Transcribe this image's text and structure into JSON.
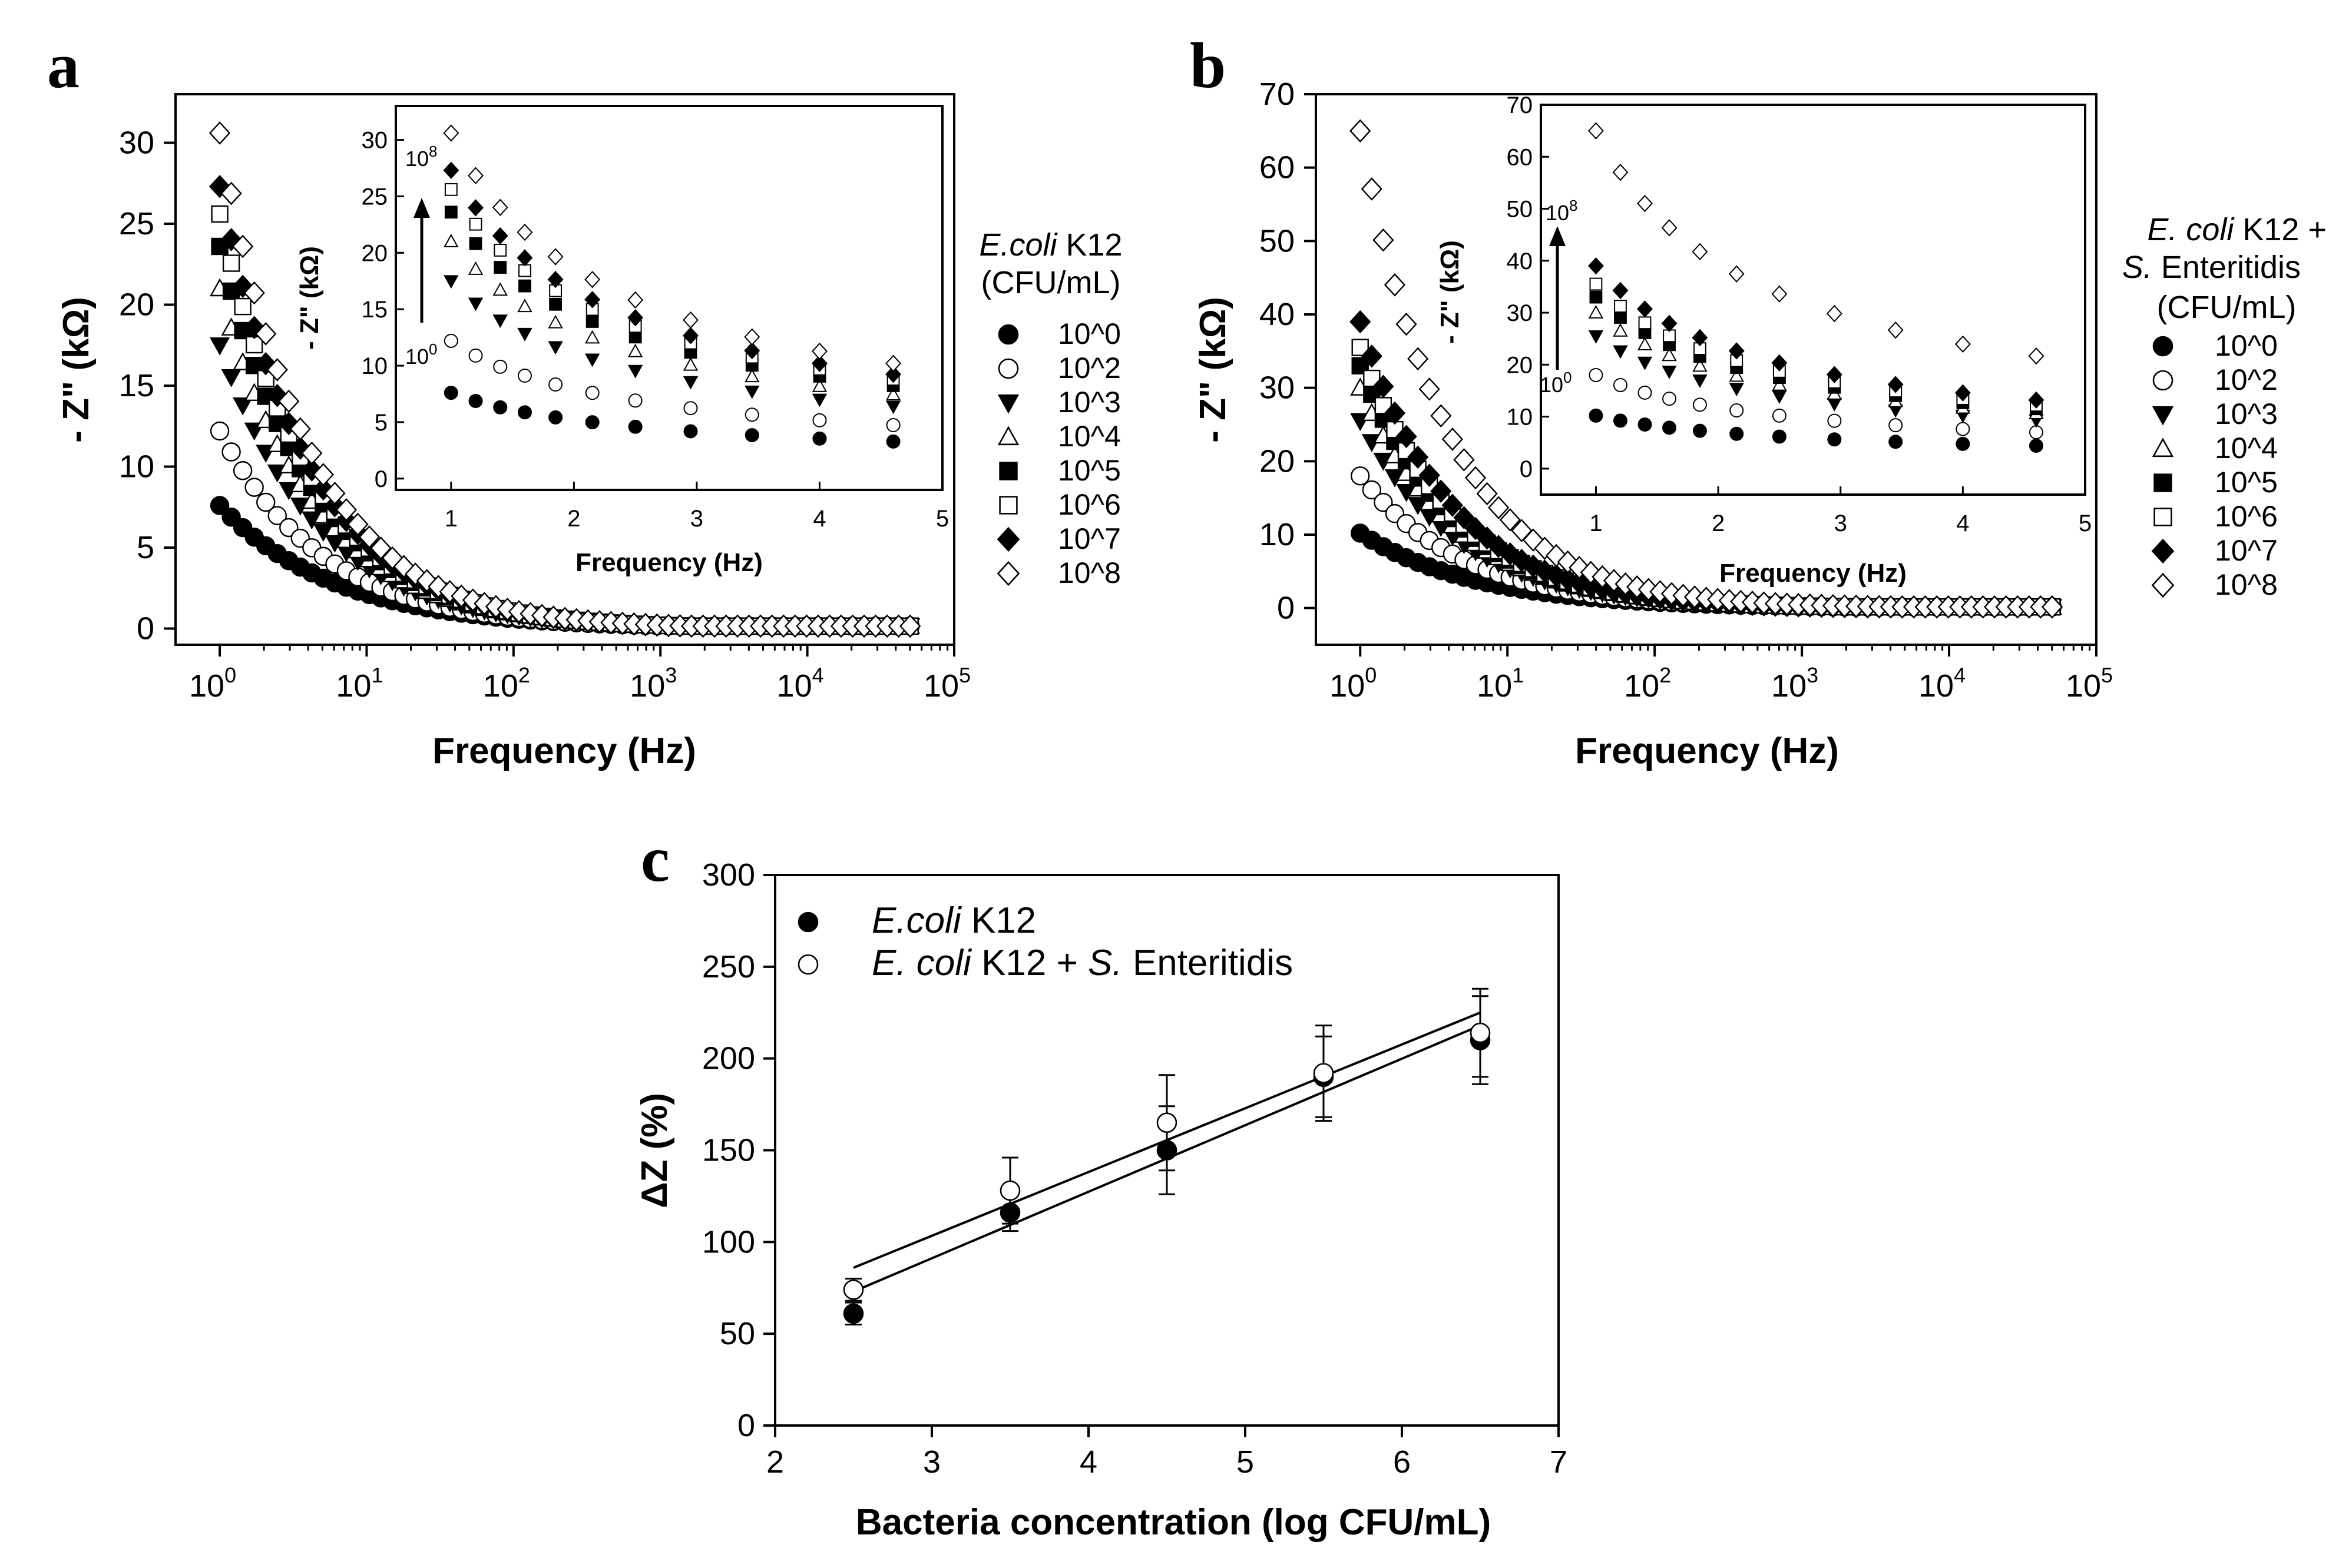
{
  "colors": {
    "ink": "#000000",
    "paper": "#ffffff"
  },
  "panels": {
    "a": {
      "letter": "a"
    },
    "b": {
      "letter": "b"
    },
    "c": {
      "letter": "c"
    }
  },
  "chart_data": [
    {
      "id": "a",
      "type": "scatter",
      "title": "",
      "xlabel": "Frequency (Hz)",
      "ylabel": "- Z\" (kΩ)",
      "xscale": "log",
      "xlim": [
        0.5,
        100000
      ],
      "ylim": [
        -1,
        33
      ],
      "x_tick_labels": [
        {
          "base": "10",
          "exp": "0"
        },
        {
          "base": "10",
          "exp": "1"
        },
        {
          "base": "10",
          "exp": "2"
        },
        {
          "base": "10",
          "exp": "3"
        },
        {
          "base": "10",
          "exp": "4"
        },
        {
          "base": "10",
          "exp": "5"
        }
      ],
      "y_ticks": [
        0,
        5,
        10,
        15,
        20,
        25,
        30
      ],
      "legend_title_italic": "E.coli",
      "legend_title_rest": " K12",
      "legend_subtitle": "(CFU/mL)",
      "series": [
        {
          "name": "10^0",
          "marker": "circle-filled",
          "z1": 7.6
        },
        {
          "name": "10^2",
          "marker": "circle-open",
          "z1": 12.2
        },
        {
          "name": "10^3",
          "marker": "triangle-down-filled",
          "z1": 17.5
        },
        {
          "name": "10^4",
          "marker": "triangle-up-open",
          "z1": 21.0
        },
        {
          "name": "10^5",
          "marker": "square-filled",
          "z1": 23.6
        },
        {
          "name": "10^6",
          "marker": "square-open",
          "z1": 25.6
        },
        {
          "name": "10^7",
          "marker": "diamond-filled",
          "z1": 27.3
        },
        {
          "name": "10^8",
          "marker": "diamond-open",
          "z1": 30.6
        }
      ],
      "inset": {
        "xlabel": "Frequency (Hz)",
        "ylabel": "- Z\" (kΩ)",
        "xlim": [
          0.55,
          5
        ],
        "ylim": [
          -1,
          33
        ],
        "x_ticks": [
          1,
          2,
          3,
          4,
          5
        ],
        "y_ticks": [
          0,
          5,
          10,
          15,
          20,
          25,
          30
        ],
        "x_points": [
          1,
          1.2,
          1.4,
          1.6,
          1.85,
          2.15,
          2.5,
          2.95,
          3.45,
          4.0,
          4.6
        ],
        "arrow_top_base": "10",
        "arrow_top_exp": "8",
        "arrow_bottom_base": "10",
        "arrow_bottom_exp": "0"
      }
    },
    {
      "id": "b",
      "type": "scatter",
      "title": "",
      "xlabel": "Frequency (Hz)",
      "ylabel": "- Z\" (kΩ)",
      "xscale": "log",
      "xlim": [
        0.5,
        100000
      ],
      "ylim": [
        -5,
        70
      ],
      "x_tick_labels": [
        {
          "base": "10",
          "exp": "0"
        },
        {
          "base": "10",
          "exp": "1"
        },
        {
          "base": "10",
          "exp": "2"
        },
        {
          "base": "10",
          "exp": "3"
        },
        {
          "base": "10",
          "exp": "4"
        },
        {
          "base": "10",
          "exp": "5"
        }
      ],
      "y_ticks": [
        0,
        10,
        20,
        30,
        40,
        50,
        60,
        70
      ],
      "legend_title_italic": "E. coli",
      "legend_title_rest": " K12 +",
      "legend_title2_italic": "S.",
      "legend_title2_rest": " Enteritidis",
      "legend_subtitle": "(CFU/mL)",
      "series": [
        {
          "name": "10^0",
          "marker": "circle-filled",
          "z1": 10.2
        },
        {
          "name": "10^2",
          "marker": "circle-open",
          "z1": 18.0
        },
        {
          "name": "10^3",
          "marker": "triangle-down-filled",
          "z1": 25.5
        },
        {
          "name": "10^4",
          "marker": "triangle-up-open",
          "z1": 30.0
        },
        {
          "name": "10^5",
          "marker": "square-filled",
          "z1": 33.0
        },
        {
          "name": "10^6",
          "marker": "square-open",
          "z1": 35.5
        },
        {
          "name": "10^7",
          "marker": "diamond-filled",
          "z1": 39.0
        },
        {
          "name": "10^8",
          "marker": "diamond-open",
          "z1": 65.0
        }
      ],
      "inset": {
        "xlabel": "Frequency (Hz)",
        "ylabel": "- Z\" (kΩ)",
        "xlim": [
          0.55,
          5
        ],
        "ylim": [
          -5,
          70
        ],
        "x_ticks": [
          1,
          2,
          3,
          4,
          5
        ],
        "y_ticks": [
          0,
          10,
          20,
          30,
          40,
          50,
          60,
          70
        ],
        "x_points": [
          1,
          1.2,
          1.4,
          1.6,
          1.85,
          2.15,
          2.5,
          2.95,
          3.45,
          4.0,
          4.6
        ],
        "arrow_top_base": "10",
        "arrow_top_exp": "8",
        "arrow_bottom_base": "10",
        "arrow_bottom_exp": "0"
      }
    },
    {
      "id": "c",
      "type": "scatter",
      "title": "",
      "xlabel": "Bacteria concentration (log CFU/mL)",
      "ylabel": "ΔZ (%)",
      "xlim": [
        2,
        7
      ],
      "ylim": [
        0,
        300
      ],
      "x_ticks": [
        2,
        3,
        4,
        5,
        6,
        7
      ],
      "y_ticks": [
        0,
        50,
        100,
        150,
        200,
        250,
        300
      ],
      "series": [
        {
          "name_italic": "E.coli",
          "name_rest": " K12",
          "marker": "circle-filled",
          "x": [
            2.5,
            3.5,
            4.5,
            5.5,
            6.5
          ],
          "y": [
            61,
            116,
            150,
            190,
            210
          ],
          "err": [
            6,
            10,
            24,
            22,
            24
          ],
          "fit": [
            [
              2.5,
              73
            ],
            [
              6.5,
              218
            ]
          ]
        },
        {
          "name_italic": "E. coli",
          "name_rest": " K12 + ",
          "name_italic2": "S.",
          "name_rest2": " Enteritidis",
          "marker": "circle-open",
          "x": [
            2.5,
            3.5,
            4.5,
            5.5,
            6.5
          ],
          "y": [
            74,
            128,
            165,
            192,
            214
          ],
          "err": [
            6,
            18,
            26,
            26,
            24
          ],
          "fit": [
            [
              2.5,
              86
            ],
            [
              6.5,
              225
            ]
          ]
        }
      ]
    }
  ]
}
